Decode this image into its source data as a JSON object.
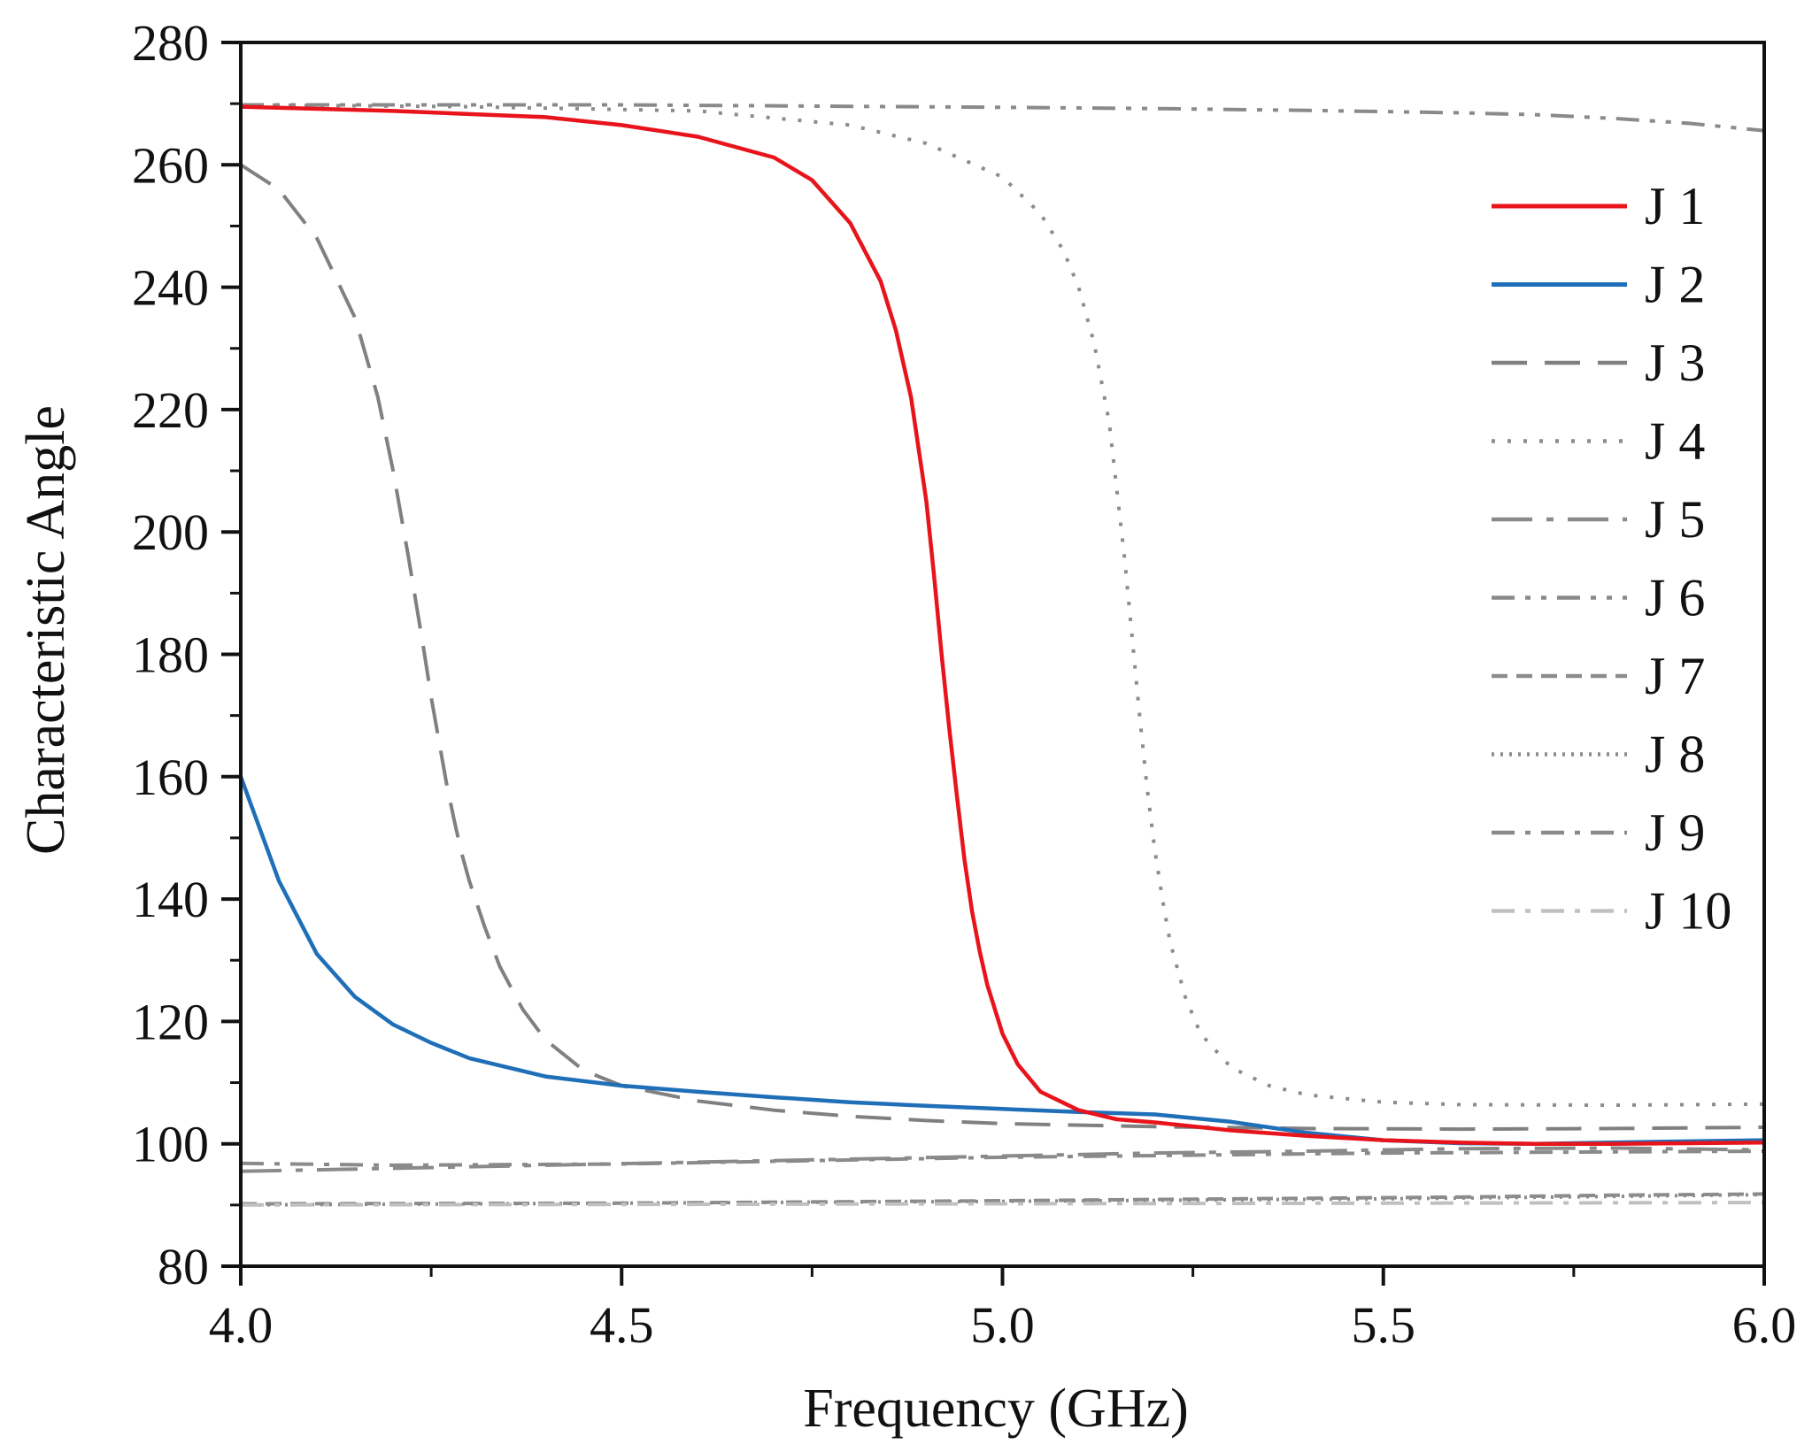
{
  "chart_data": {
    "type": "line",
    "title": "",
    "xlabel": "Frequency (GHz)",
    "ylabel": "Characteristic Angle",
    "xlim": [
      4.0,
      6.0
    ],
    "ylim": [
      80,
      280
    ],
    "x_ticks": [
      4.0,
      4.5,
      5.0,
      5.5,
      6.0
    ],
    "x_tick_labels": [
      "4.0",
      "4.5",
      "5.0",
      "5.5",
      "6.0"
    ],
    "x_minor_step": 0.25,
    "y_ticks": [
      80,
      100,
      120,
      140,
      160,
      180,
      200,
      220,
      240,
      260,
      280
    ],
    "y_tick_labels": [
      "80",
      "100",
      "120",
      "140",
      "160",
      "180",
      "200",
      "220",
      "240",
      "260",
      "280"
    ],
    "y_minor_step": 10,
    "grid": false,
    "legend_position": "right",
    "series": [
      {
        "name": "J 1",
        "color": "#e8141c",
        "style": "solid",
        "x": [
          4.0,
          4.2,
          4.4,
          4.5,
          4.6,
          4.7,
          4.75,
          4.8,
          4.84,
          4.86,
          4.88,
          4.9,
          4.91,
          4.92,
          4.93,
          4.94,
          4.95,
          4.96,
          4.97,
          4.98,
          5.0,
          5.02,
          5.05,
          5.1,
          5.15,
          5.2,
          5.3,
          5.4,
          5.5,
          5.6,
          5.7,
          5.8,
          5.9,
          6.0
        ],
        "y": [
          269.5,
          268.8,
          267.8,
          266.5,
          264.6,
          261.2,
          257.5,
          250.5,
          241.0,
          233.0,
          222.0,
          205.0,
          193.0,
          180.0,
          168.0,
          157.0,
          146.5,
          138.0,
          131.5,
          126.0,
          118.0,
          113.0,
          108.5,
          105.5,
          104.0,
          103.5,
          102.2,
          101.3,
          100.6,
          100.2,
          100.0,
          100.0,
          100.1,
          100.2
        ]
      },
      {
        "name": "J 2",
        "color": "#1f6fb8",
        "style": "solid",
        "x": [
          4.0,
          4.05,
          4.1,
          4.15,
          4.2,
          4.25,
          4.3,
          4.4,
          4.5,
          4.6,
          4.7,
          4.8,
          4.9,
          5.0,
          5.1,
          5.2,
          5.3,
          5.4,
          5.5,
          5.6,
          5.7,
          5.8,
          5.9,
          6.0
        ],
        "y": [
          160.0,
          143.0,
          131.0,
          124.0,
          119.5,
          116.5,
          114.0,
          111.0,
          109.5,
          108.5,
          107.6,
          106.8,
          106.2,
          105.7,
          105.2,
          104.8,
          103.6,
          101.8,
          100.6,
          100.1,
          100.0,
          100.2,
          100.4,
          100.6
        ]
      },
      {
        "name": "J 3",
        "color": "#808080",
        "style": "dash",
        "x": [
          4.0,
          4.05,
          4.1,
          4.15,
          4.18,
          4.2,
          4.22,
          4.24,
          4.25,
          4.26,
          4.27,
          4.28,
          4.29,
          4.3,
          4.32,
          4.34,
          4.37,
          4.4,
          4.45,
          4.5,
          4.6,
          4.7,
          4.8,
          4.9,
          5.0,
          5.2,
          5.4,
          5.6,
          5.8,
          6.0
        ],
        "y": [
          260.0,
          256.0,
          248.0,
          235.0,
          222.0,
          210.0,
          196.0,
          181.0,
          173.0,
          166.0,
          159.0,
          153.0,
          147.5,
          143.0,
          135.5,
          129.0,
          122.0,
          117.0,
          112.0,
          109.5,
          107.0,
          105.5,
          104.5,
          103.8,
          103.3,
          102.8,
          102.5,
          102.4,
          102.5,
          102.7
        ]
      },
      {
        "name": "J 4",
        "color": "#8c8c8c",
        "style": "dot",
        "x": [
          4.0,
          4.3,
          4.6,
          4.8,
          4.9,
          5.0,
          5.05,
          5.08,
          5.1,
          5.12,
          5.14,
          5.15,
          5.16,
          5.17,
          5.18,
          5.19,
          5.2,
          5.21,
          5.22,
          5.24,
          5.26,
          5.3,
          5.35,
          5.4,
          5.5,
          5.6,
          5.8,
          6.0
        ],
        "y": [
          269.8,
          269.5,
          268.8,
          266.5,
          263.5,
          258.0,
          252.0,
          246.0,
          240.0,
          231.0,
          218.0,
          207.0,
          196.0,
          183.0,
          170.0,
          158.0,
          148.0,
          140.0,
          133.0,
          124.0,
          118.0,
          112.5,
          109.5,
          108.0,
          106.8,
          106.4,
          106.3,
          106.5
        ]
      },
      {
        "name": "J 5",
        "color": "#8a8a8a",
        "style": "longdashdot",
        "x": [
          4.0,
          4.2,
          4.4,
          4.6,
          4.8,
          5.0,
          5.2,
          5.4,
          5.6,
          5.8,
          6.0
        ],
        "y": [
          95.5,
          96.0,
          96.5,
          97.0,
          97.5,
          98.0,
          98.5,
          98.8,
          99.2,
          99.3,
          99.0
        ]
      },
      {
        "name": "J 6",
        "color": "#8a8a8a",
        "style": "dashdotdot",
        "x": [
          4.0,
          4.5,
          5.0,
          5.2,
          5.4,
          5.5,
          5.6,
          5.7,
          5.8,
          5.9,
          6.0
        ],
        "y": [
          269.8,
          269.8,
          269.4,
          269.2,
          268.9,
          268.7,
          268.5,
          268.2,
          267.6,
          266.8,
          265.6
        ]
      },
      {
        "name": "J 7",
        "color": "#8c8c8c",
        "style": "shortdash",
        "x": [
          4.0,
          4.5,
          5.0,
          5.3,
          5.6,
          5.8,
          6.0
        ],
        "y": [
          90.2,
          90.3,
          90.7,
          91.0,
          91.3,
          91.6,
          91.8
        ]
      },
      {
        "name": "J 8",
        "color": "#8c8c8c",
        "style": "shortdot",
        "x": [
          4.0,
          4.5,
          5.0,
          5.5,
          5.8,
          6.0
        ],
        "y": [
          90.0,
          90.3,
          90.6,
          91.0,
          91.4,
          91.7
        ]
      },
      {
        "name": "J 9",
        "color": "#8a8a8a",
        "style": "dashdot",
        "x": [
          4.0,
          4.2,
          4.5,
          5.0,
          5.5,
          6.0
        ],
        "y": [
          96.8,
          96.5,
          96.7,
          97.8,
          98.5,
          98.8
        ]
      },
      {
        "name": "J 10",
        "color": "#c0c0c0",
        "style": "dashdot",
        "x": [
          4.0,
          4.5,
          5.0,
          5.5,
          6.0
        ],
        "y": [
          90.0,
          90.1,
          90.2,
          90.3,
          90.4
        ]
      }
    ]
  }
}
